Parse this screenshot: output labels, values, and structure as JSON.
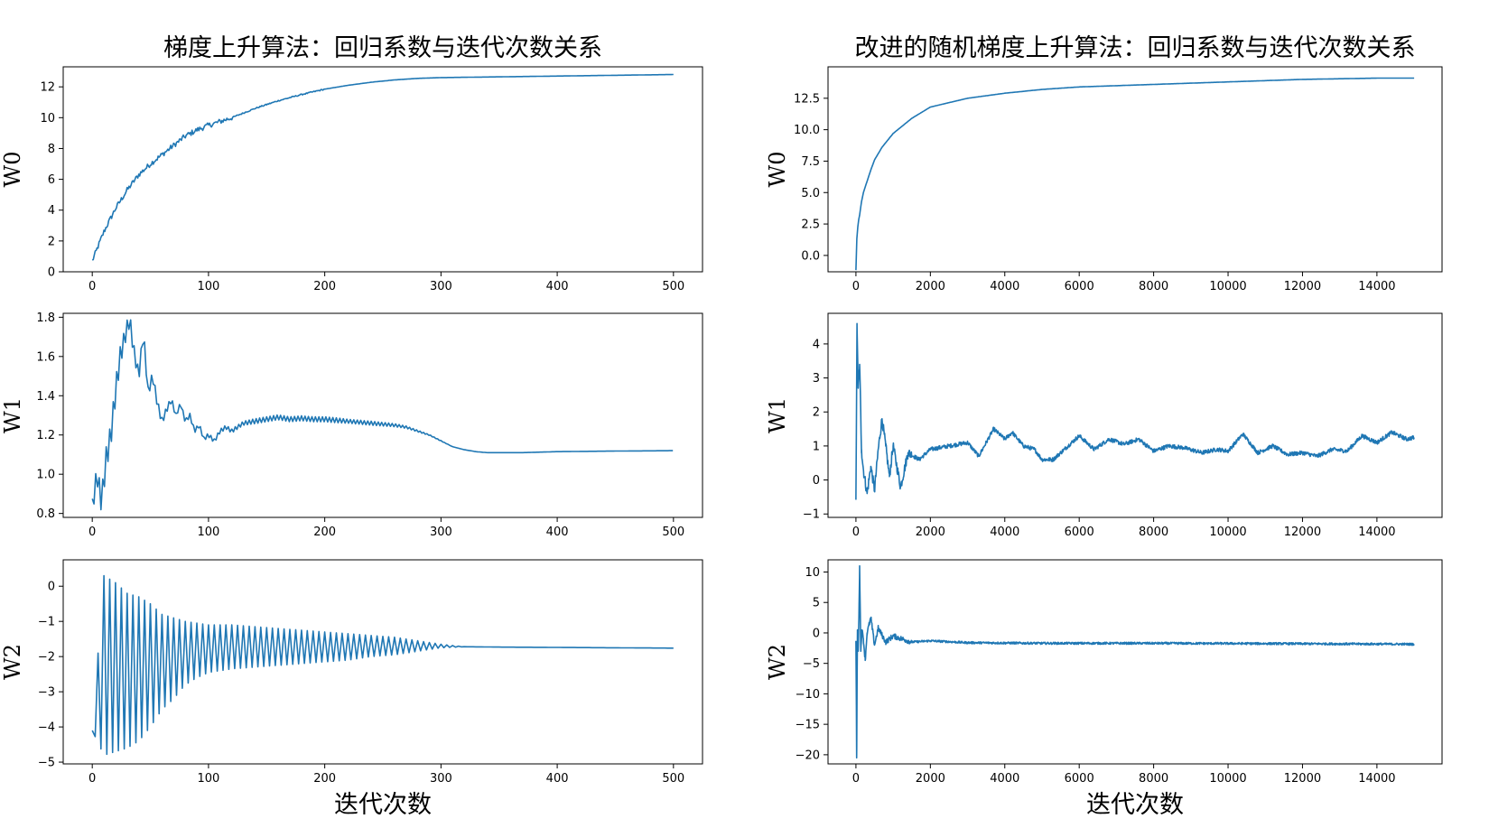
{
  "chart_data": [
    {
      "type": "line",
      "title": "梯度上升算法：回归系数与迭代次数关系",
      "xlabel": "",
      "ylabel": "W0",
      "xlim": [
        -25,
        525
      ],
      "ylim": [
        0,
        13.3
      ],
      "xticks": [
        0,
        100,
        200,
        300,
        400,
        500
      ],
      "yticks": [
        0,
        2,
        4,
        6,
        8,
        10,
        12
      ],
      "x": [
        0,
        10,
        20,
        30,
        40,
        50,
        60,
        70,
        80,
        90,
        100,
        120,
        140,
        160,
        180,
        200,
        220,
        240,
        260,
        280,
        300,
        350,
        400,
        450,
        500
      ],
      "y": [
        0.7,
        2.6,
        4.1,
        5.3,
        6.3,
        7.0,
        7.6,
        8.2,
        8.8,
        9.2,
        9.5,
        10.0,
        10.6,
        11.1,
        11.5,
        11.85,
        12.1,
        12.3,
        12.45,
        12.55,
        12.6,
        12.65,
        12.7,
        12.75,
        12.8
      ]
    },
    {
      "type": "line",
      "title": "改进的随机梯度上升算法：回归系数与迭代次数关系",
      "xlabel": "",
      "ylabel": "W0",
      "xlim": [
        -750,
        15750
      ],
      "ylim": [
        -1.3,
        15.0
      ],
      "xticks": [
        0,
        2000,
        4000,
        6000,
        8000,
        10000,
        12000,
        14000
      ],
      "yticks": [
        0.0,
        2.5,
        5.0,
        7.5,
        10.0,
        12.5
      ],
      "tick_labels_y": [
        "0.0",
        "2.5",
        "5.0",
        "7.5",
        "10.0",
        "12.5"
      ],
      "x": [
        0,
        20,
        50,
        100,
        150,
        200,
        300,
        400,
        500,
        700,
        1000,
        1500,
        2000,
        3000,
        4000,
        5000,
        6000,
        7000,
        8000,
        9000,
        10000,
        11000,
        12000,
        13000,
        14000,
        15000
      ],
      "y": [
        -1.1,
        1.0,
        2.2,
        3.2,
        4.3,
        5.0,
        5.9,
        6.8,
        7.6,
        8.6,
        9.7,
        10.9,
        11.8,
        12.5,
        12.9,
        13.2,
        13.4,
        13.5,
        13.6,
        13.7,
        13.8,
        13.9,
        14.0,
        14.05,
        14.1,
        14.1
      ]
    },
    {
      "type": "line",
      "title": "",
      "xlabel": "",
      "ylabel": "W1",
      "xlim": [
        -25,
        525
      ],
      "ylim": [
        0.78,
        1.82
      ],
      "xticks": [
        0,
        100,
        200,
        300,
        400,
        500
      ],
      "yticks": [
        0.8,
        1.0,
        1.2,
        1.4,
        1.6,
        1.8
      ],
      "tick_labels_y": [
        "0.8",
        "1.0",
        "1.2",
        "1.4",
        "1.6",
        "1.8"
      ],
      "x": [
        0,
        4,
        8,
        12,
        16,
        20,
        24,
        28,
        32,
        36,
        40,
        44,
        48,
        52,
        56,
        60,
        64,
        68,
        72,
        76,
        80,
        84,
        88,
        92,
        96,
        100,
        105,
        110,
        115,
        120,
        130,
        140,
        150,
        160,
        170,
        180,
        190,
        200,
        210,
        220,
        230,
        240,
        250,
        260,
        270,
        280,
        290,
        300,
        310,
        320,
        330,
        340,
        350,
        370,
        400,
        450,
        500
      ],
      "y": [
        0.83,
        1.0,
        0.86,
        1.08,
        1.2,
        1.42,
        1.6,
        1.7,
        1.79,
        1.62,
        1.5,
        1.72,
        1.42,
        1.5,
        1.36,
        1.27,
        1.33,
        1.38,
        1.3,
        1.36,
        1.27,
        1.3,
        1.22,
        1.25,
        1.18,
        1.2,
        1.17,
        1.22,
        1.24,
        1.22,
        1.26,
        1.27,
        1.28,
        1.29,
        1.28,
        1.285,
        1.28,
        1.28,
        1.275,
        1.27,
        1.265,
        1.26,
        1.255,
        1.25,
        1.24,
        1.22,
        1.2,
        1.17,
        1.14,
        1.125,
        1.115,
        1.11,
        1.11,
        1.11,
        1.115,
        1.118,
        1.12
      ],
      "oscillation": [
        0.09,
        0.09,
        0.12,
        0.12,
        0.12,
        0.12,
        0.1,
        0.08,
        0.08,
        0.07,
        0.06,
        0.06,
        0.05,
        0.05,
        0.04,
        0.04,
        0.03,
        0.03,
        0.02,
        0.02,
        0.02,
        0.02,
        0.02,
        0.02,
        0.02,
        0.02,
        0.02,
        0.02,
        0.02,
        0.02,
        0.02,
        0.025,
        0.025,
        0.025,
        0.025,
        0.025,
        0.025,
        0.025,
        0.025,
        0.02,
        0.02,
        0.02,
        0.018,
        0.015,
        0.012,
        0.008,
        0.005,
        0.003,
        0,
        0,
        0,
        0,
        0,
        0,
        0,
        0,
        0
      ]
    },
    {
      "type": "line",
      "title": "",
      "xlabel": "",
      "ylabel": "W1",
      "xlim": [
        -750,
        15750
      ],
      "ylim": [
        -1.1,
        4.9
      ],
      "xticks": [
        0,
        2000,
        4000,
        6000,
        8000,
        10000,
        12000,
        14000
      ],
      "yticks": [
        -1,
        0,
        1,
        2,
        3,
        4
      ],
      "tick_labels_y": [
        "−1",
        "0",
        "1",
        "2",
        "3",
        "4"
      ],
      "x": [
        0,
        30,
        60,
        100,
        150,
        200,
        300,
        400,
        500,
        600,
        700,
        800,
        900,
        1000,
        1100,
        1200,
        1400,
        1700,
        2000,
        2500,
        3000,
        3300,
        3700,
        4000,
        4200,
        4500,
        4800,
        5000,
        5300,
        5600,
        6000,
        6400,
        6800,
        7200,
        7600,
        8000,
        8400,
        8800,
        9300,
        9700,
        10000,
        10400,
        10800,
        11200,
        11600,
        12000,
        12400,
        12800,
        13200,
        13600,
        14000,
        14400,
        14800,
        15000
      ],
      "y": [
        -0.5,
        4.6,
        2.7,
        3.4,
        0.9,
        0.3,
        -0.4,
        0.4,
        -0.3,
        0.9,
        1.8,
        1.0,
        0.1,
        1.0,
        0.4,
        -0.2,
        0.8,
        0.6,
        0.9,
        1.0,
        1.1,
        0.7,
        1.5,
        1.2,
        1.4,
        1.0,
        0.9,
        0.6,
        0.6,
        0.9,
        1.3,
        0.9,
        1.2,
        1.05,
        1.2,
        0.85,
        1.0,
        0.95,
        0.8,
        0.9,
        0.85,
        1.35,
        0.8,
        1.0,
        0.75,
        0.8,
        0.7,
        0.9,
        0.85,
        1.3,
        1.1,
        1.4,
        1.2,
        1.25
      ],
      "noise": 0.12
    },
    {
      "type": "line",
      "title": "",
      "xlabel": "迭代次数",
      "ylabel": "W2",
      "xlim": [
        -25,
        525
      ],
      "ylim": [
        -5.05,
        0.75
      ],
      "xticks": [
        0,
        100,
        200,
        300,
        400,
        500
      ],
      "yticks": [
        -5,
        -4,
        -3,
        -2,
        -1,
        0
      ],
      "tick_labels_y": [
        "−5",
        "−4",
        "−3",
        "−2",
        "−1",
        "0"
      ],
      "x": [
        0,
        10,
        20,
        30,
        40,
        50,
        60,
        70,
        80,
        90,
        100,
        120,
        140,
        160,
        180,
        200,
        220,
        240,
        260,
        280,
        300,
        320,
        350,
        400,
        450,
        500
      ],
      "upper": [
        -4.1,
        0.3,
        0.1,
        -0.2,
        -0.3,
        -0.5,
        -0.8,
        -0.9,
        -1.0,
        -1.05,
        -1.1,
        -1.1,
        -1.15,
        -1.2,
        -1.25,
        -1.3,
        -1.35,
        -1.4,
        -1.45,
        -1.55,
        -1.65,
        -1.72,
        -1.73,
        -1.74,
        -1.75,
        -1.76
      ],
      "lower": [
        -4.1,
        -4.8,
        -4.7,
        -4.6,
        -4.4,
        -4.0,
        -3.5,
        -3.2,
        -2.8,
        -2.6,
        -2.45,
        -2.35,
        -2.3,
        -2.25,
        -2.2,
        -2.15,
        -2.1,
        -2.0,
        -1.95,
        -1.85,
        -1.75,
        -1.72,
        -1.73,
        -1.74,
        -1.75,
        -1.76
      ]
    },
    {
      "type": "line",
      "title": "",
      "xlabel": "迭代次数",
      "ylabel": "W2",
      "xlim": [
        -750,
        15750
      ],
      "ylim": [
        -21.5,
        12.0
      ],
      "xticks": [
        0,
        2000,
        4000,
        6000,
        8000,
        10000,
        12000,
        14000
      ],
      "yticks": [
        -20,
        -15,
        -10,
        -5,
        0,
        5,
        10
      ],
      "tick_labels_y": [
        "−20",
        "−15",
        "−10",
        "−5",
        "0",
        "5",
        "10"
      ],
      "x": [
        0,
        20,
        40,
        60,
        80,
        100,
        130,
        160,
        200,
        250,
        300,
        400,
        500,
        600,
        800,
        1000,
        1500,
        2000,
        3000,
        5000,
        8000,
        11000,
        13000,
        15000
      ],
      "y": [
        -1.5,
        -20.5,
        0.5,
        -3.0,
        2.5,
        11.0,
        -3.0,
        0.5,
        -1.0,
        -4.5,
        0.0,
        2.5,
        -2.0,
        0.8,
        -1.5,
        -0.5,
        -1.5,
        -1.3,
        -1.6,
        -1.7,
        -1.7,
        -1.75,
        -1.8,
        -1.85
      ],
      "noise": 0.35
    }
  ]
}
